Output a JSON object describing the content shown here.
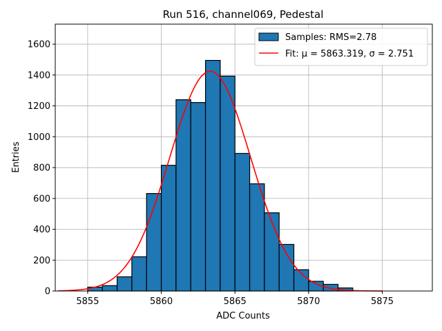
{
  "chart_data": {
    "type": "bar",
    "title": "Run 516, channel069, Pedestal",
    "xlabel": "ADC Counts",
    "ylabel": "Entries",
    "xlim": [
      5852.8,
      5878.4
    ],
    "ylim": [
      0,
      1730
    ],
    "xticks": [
      5855,
      5860,
      5865,
      5870,
      5875
    ],
    "yticks": [
      0,
      200,
      400,
      600,
      800,
      1000,
      1200,
      1400,
      1600
    ],
    "grid": true,
    "legend_position": "top-right",
    "bin_width": 1,
    "bins": [
      {
        "x0": 5855,
        "value": 25
      },
      {
        "x0": 5856,
        "value": 35
      },
      {
        "x0": 5857,
        "value": 92
      },
      {
        "x0": 5858,
        "value": 222
      },
      {
        "x0": 5859,
        "value": 632
      },
      {
        "x0": 5860,
        "value": 815
      },
      {
        "x0": 5861,
        "value": 1240
      },
      {
        "x0": 5862,
        "value": 1222
      },
      {
        "x0": 5863,
        "value": 1495
      },
      {
        "x0": 5864,
        "value": 1393
      },
      {
        "x0": 5865,
        "value": 892
      },
      {
        "x0": 5866,
        "value": 695
      },
      {
        "x0": 5867,
        "value": 507
      },
      {
        "x0": 5868,
        "value": 302
      },
      {
        "x0": 5869,
        "value": 138
      },
      {
        "x0": 5870,
        "value": 63
      },
      {
        "x0": 5871,
        "value": 43
      },
      {
        "x0": 5872,
        "value": 20
      }
    ],
    "fit": {
      "mu": 5863.319,
      "sigma": 2.751,
      "amplitude": 1425,
      "x_range": [
        5853,
        5875
      ]
    },
    "series": [
      {
        "name": "Samples: RMS=2.78",
        "kind": "histogram",
        "color": "#1f77b4"
      },
      {
        "name": "Fit: μ = 5863.319, σ = 2.751",
        "kind": "line",
        "color": "#ff0000"
      }
    ]
  }
}
